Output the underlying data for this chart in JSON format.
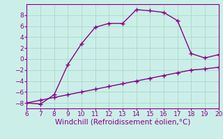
{
  "x_curve": [
    6,
    7,
    8,
    9,
    10,
    11,
    12,
    13,
    14,
    15,
    16,
    17,
    18,
    19,
    20
  ],
  "y_curve": [
    -8,
    -8.2,
    -6.5,
    -1,
    2.8,
    5.8,
    6.5,
    6.5,
    9,
    8.8,
    8.5,
    7,
    1,
    0.2,
    0.8
  ],
  "x_line": [
    6,
    7,
    8,
    9,
    10,
    11,
    12,
    13,
    14,
    15,
    16,
    17,
    18,
    19,
    20
  ],
  "y_line": [
    -8,
    -7.5,
    -7.0,
    -6.5,
    -6.0,
    -5.5,
    -5.0,
    -4.5,
    -4.0,
    -3.5,
    -3.0,
    -2.5,
    -2.0,
    -1.8,
    -1.5
  ],
  "line_color": "#880088",
  "bg_color": "#cceee8",
  "grid_color": "#aaddcc",
  "axis_color": "#880088",
  "tick_color": "#880088",
  "xlabel": "Windchill (Refroidissement éolien,°C)",
  "xlim": [
    6,
    20
  ],
  "ylim": [
    -9,
    10
  ],
  "xticks": [
    6,
    7,
    8,
    9,
    10,
    11,
    12,
    13,
    14,
    15,
    16,
    17,
    18,
    19,
    20
  ],
  "yticks": [
    -8,
    -6,
    -4,
    -2,
    0,
    2,
    4,
    6,
    8
  ],
  "marker": "+",
  "markersize": 4,
  "linewidth": 1.0,
  "xlabel_fontsize": 7.5,
  "tick_fontsize": 6.5
}
